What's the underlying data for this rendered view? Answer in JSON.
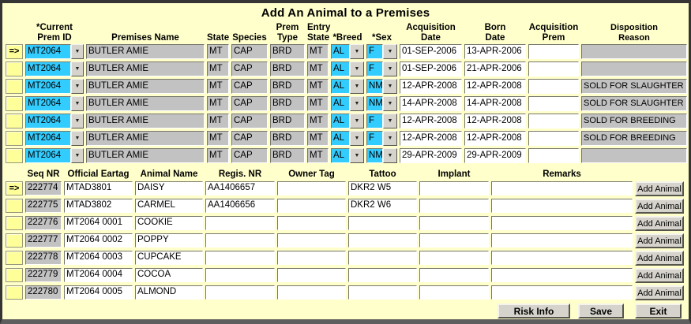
{
  "window": {
    "title": "Add An Animal to a Premises"
  },
  "colors": {
    "background": "#FFFFCB",
    "selector_yellow": "#FFFF99",
    "dropdown_cyan": "#33CCFF",
    "readonly_gray": "#C2C2C2",
    "button_gray": "#D5D3CB"
  },
  "icons": {
    "dropdown": "▼"
  },
  "top_table": {
    "headers": {
      "prem_id": "*Current\nPrem ID",
      "premises_name": "Premises Name",
      "state": "State",
      "species": "Species",
      "prem_type": "Prem\nType",
      "entry_state": "Entry\nState",
      "breed": "*Breed",
      "sex": "*Sex",
      "acq_date": "Acquisition\nDate",
      "born_date": "Born\nDate",
      "acq_prem": "Acquisition\nPrem",
      "disposition": "Disposition\nReason"
    },
    "rows": [
      {
        "indicator": "=>",
        "prem_id": "MT2064",
        "premises_name": "BUTLER AMIE",
        "state": "MT",
        "species": "CAP",
        "prem_type": "BRD",
        "entry_state": "MT",
        "breed": "AL",
        "sex": "F",
        "acq_date": "01-SEP-2006",
        "born_date": "13-APR-2006",
        "acq_prem": "",
        "disposition": ""
      },
      {
        "indicator": "",
        "prem_id": "MT2064",
        "premises_name": "BUTLER AMIE",
        "state": "MT",
        "species": "CAP",
        "prem_type": "BRD",
        "entry_state": "MT",
        "breed": "AL",
        "sex": "F",
        "acq_date": "01-SEP-2006",
        "born_date": "21-APR-2006",
        "acq_prem": "",
        "disposition": ""
      },
      {
        "indicator": "",
        "prem_id": "MT2064",
        "premises_name": "BUTLER AMIE",
        "state": "MT",
        "species": "CAP",
        "prem_type": "BRD",
        "entry_state": "MT",
        "breed": "AL",
        "sex": "NM",
        "acq_date": "12-APR-2008",
        "born_date": "12-APR-2008",
        "acq_prem": "",
        "disposition": "SOLD FOR SLAUGHTER"
      },
      {
        "indicator": "",
        "prem_id": "MT2064",
        "premises_name": "BUTLER AMIE",
        "state": "MT",
        "species": "CAP",
        "prem_type": "BRD",
        "entry_state": "MT",
        "breed": "AL",
        "sex": "NM",
        "acq_date": "14-APR-2008",
        "born_date": "14-APR-2008",
        "acq_prem": "",
        "disposition": "SOLD FOR SLAUGHTER"
      },
      {
        "indicator": "",
        "prem_id": "MT2064",
        "premises_name": "BUTLER AMIE",
        "state": "MT",
        "species": "CAP",
        "prem_type": "BRD",
        "entry_state": "MT",
        "breed": "AL",
        "sex": "F",
        "acq_date": "12-APR-2008",
        "born_date": "12-APR-2008",
        "acq_prem": "",
        "disposition": "SOLD FOR BREEDING"
      },
      {
        "indicator": "",
        "prem_id": "MT2064",
        "premises_name": "BUTLER AMIE",
        "state": "MT",
        "species": "CAP",
        "prem_type": "BRD",
        "entry_state": "MT",
        "breed": "AL",
        "sex": "F",
        "acq_date": "12-APR-2008",
        "born_date": "12-APR-2008",
        "acq_prem": "",
        "disposition": "SOLD FOR BREEDING"
      },
      {
        "indicator": "",
        "prem_id": "MT2064",
        "premises_name": "BUTLER AMIE",
        "state": "MT",
        "species": "CAP",
        "prem_type": "BRD",
        "entry_state": "MT",
        "breed": "AL",
        "sex": "NM",
        "acq_date": "29-APR-2009",
        "born_date": "29-APR-2009",
        "acq_prem": "",
        "disposition": ""
      }
    ]
  },
  "bottom_table": {
    "headers": {
      "seq": "Seq NR",
      "eartag": "Official Eartag",
      "animal_name": "Animal Name",
      "regis": "Regis. NR",
      "owner_tag": "Owner Tag",
      "tattoo": "Tattoo",
      "implant": "Implant",
      "remarks": "Remarks"
    },
    "add_button_label": "Add Animal",
    "rows": [
      {
        "indicator": "=>",
        "seq": "222774",
        "eartag": "MTAD3801",
        "animal_name": "DAISY",
        "regis": "AA1406657",
        "owner_tag": "",
        "tattoo": "DKR2 W5",
        "implant": "",
        "remarks": ""
      },
      {
        "indicator": "",
        "seq": "222775",
        "eartag": "MTAD3802",
        "animal_name": "CARMEL",
        "regis": "AA1406656",
        "owner_tag": "",
        "tattoo": "DKR2 W6",
        "implant": "",
        "remarks": ""
      },
      {
        "indicator": "",
        "seq": "222776",
        "eartag": "MT2064 0001",
        "animal_name": "COOKIE",
        "regis": "",
        "owner_tag": "",
        "tattoo": "",
        "implant": "",
        "remarks": ""
      },
      {
        "indicator": "",
        "seq": "222777",
        "eartag": "MT2064 0002",
        "animal_name": "POPPY",
        "regis": "",
        "owner_tag": "",
        "tattoo": "",
        "implant": "",
        "remarks": ""
      },
      {
        "indicator": "",
        "seq": "222778",
        "eartag": "MT2064 0003",
        "animal_name": "CUPCAKE",
        "regis": "",
        "owner_tag": "",
        "tattoo": "",
        "implant": "",
        "remarks": ""
      },
      {
        "indicator": "",
        "seq": "222779",
        "eartag": "MT2064 0004",
        "animal_name": "COCOA",
        "regis": "",
        "owner_tag": "",
        "tattoo": "",
        "implant": "",
        "remarks": ""
      },
      {
        "indicator": "",
        "seq": "222780",
        "eartag": "MT2064 0005",
        "animal_name": "ALMOND",
        "regis": "",
        "owner_tag": "",
        "tattoo": "",
        "implant": "",
        "remarks": ""
      }
    ]
  },
  "footer": {
    "risk_info": "Risk Info",
    "save": "Save",
    "exit": "Exit"
  }
}
